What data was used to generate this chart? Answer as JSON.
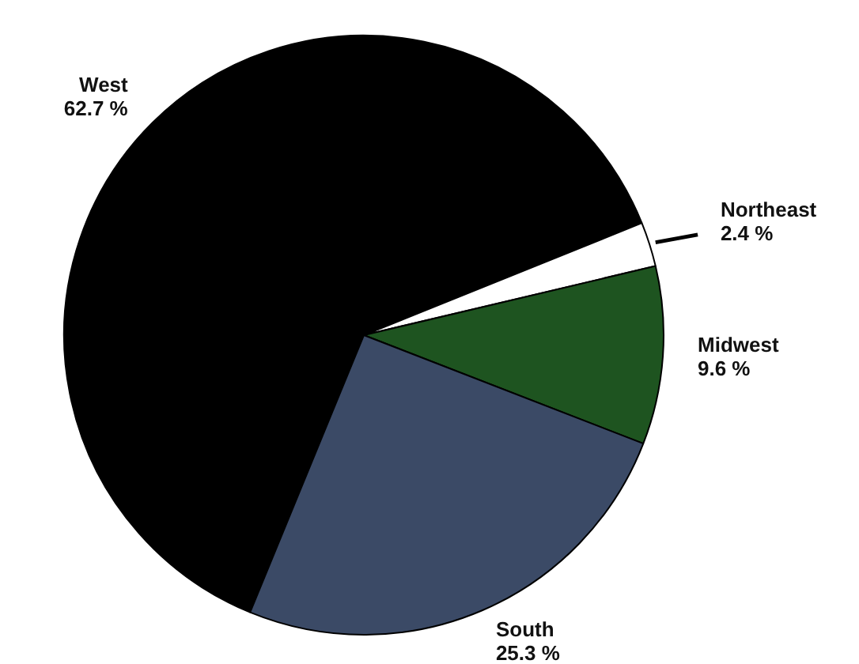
{
  "chart_data": {
    "type": "pie",
    "categories": [
      "West",
      "Northeast",
      "Midwest",
      "South"
    ],
    "values": [
      62.7,
      2.4,
      9.6,
      25.3
    ],
    "colors": [
      "#000000",
      "#ffffff",
      "#1e5420",
      "#3b4a66"
    ],
    "value_labels": [
      "62.7 %",
      "2.4 %",
      "9.6 %",
      "25.3 %"
    ],
    "legend": false
  }
}
